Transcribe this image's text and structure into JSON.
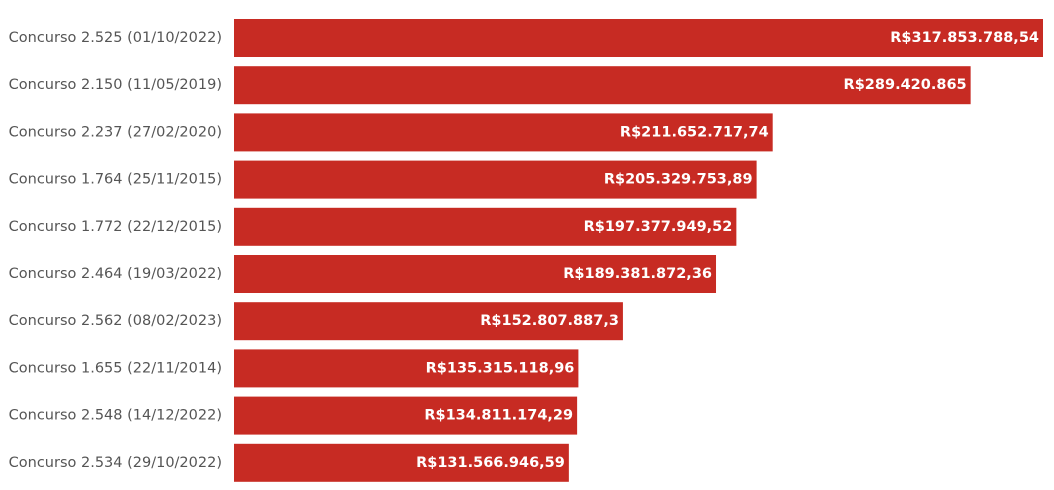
{
  "chart_data": {
    "type": "bar",
    "orientation": "horizontal",
    "categories": [
      "Concurso 2.525 (01/10/2022)",
      "Concurso 2.150 (11/05/2019)",
      "Concurso 2.237 (27/02/2020)",
      "Concurso 1.764 (25/11/2015)",
      "Concurso 1.772 (22/12/2015)",
      "Concurso 2.464 (19/03/2022)",
      "Concurso 2.562 (08/02/2023)",
      "Concurso 1.655 (22/11/2014)",
      "Concurso 2.548 (14/12/2022)",
      "Concurso 2.534 (29/10/2022)"
    ],
    "values": [
      317853788.54,
      289420865,
      211652717.74,
      205329753.89,
      197377949.52,
      189381872.36,
      152807887.3,
      135315118.96,
      134811174.29,
      131566946.59
    ],
    "value_labels": [
      "R$317.853.788,54",
      "R$289.420.865",
      "R$211.652.717,74",
      "R$205.329.753,89",
      "R$197.377.949,52",
      "R$189.381.872,36",
      "R$152.807.887,3",
      "R$135.315.118,96",
      "R$134.811.174,29",
      "R$131.566.946,59"
    ],
    "bar_color": "#c72b23",
    "grid": false,
    "legend": "none"
  }
}
